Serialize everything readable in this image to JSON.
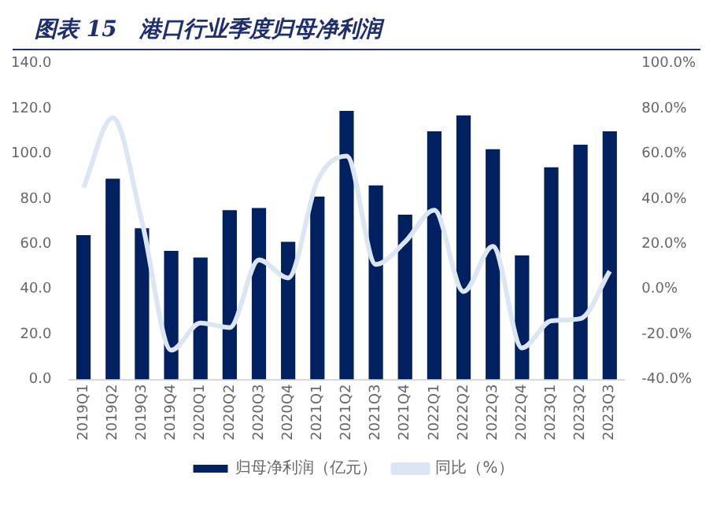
{
  "chart_data": {
    "type": "bar",
    "title": "图表 15　港口行业季度归母净利润",
    "categories": [
      "2019Q1",
      "2019Q2",
      "2019Q3",
      "2019Q4",
      "2020Q1",
      "2020Q2",
      "2020Q3",
      "2020Q4",
      "2021Q1",
      "2021Q2",
      "2021Q3",
      "2021Q4",
      "2022Q1",
      "2022Q2",
      "2022Q3",
      "2022Q4",
      "2023Q1",
      "2023Q2",
      "2023Q3"
    ],
    "series": [
      {
        "name": "归母净利润（亿元）",
        "color": "#002060",
        "values": [
          64,
          89,
          67,
          57,
          54,
          75,
          76,
          61,
          81,
          119,
          86,
          73,
          110,
          117,
          102,
          55,
          94,
          104,
          110
        ]
      },
      {
        "name": "同比（%）",
        "type": "line",
        "axis": "y2",
        "color": "#dce6f2",
        "values": [
          45,
          76,
          30,
          -27,
          -15,
          -17,
          13,
          5,
          48,
          59,
          11,
          21,
          35,
          -1,
          19,
          -26,
          -14,
          -13,
          8
        ]
      }
    ],
    "ylim": [
      0,
      140
    ],
    "yticks": [
      {
        "value": 0,
        "label": "0.0"
      },
      {
        "value": 20,
        "label": "20.0"
      },
      {
        "value": 40,
        "label": "40.0"
      },
      {
        "value": 60,
        "label": "60.0"
      },
      {
        "value": 80,
        "label": "80.0"
      },
      {
        "value": 100,
        "label": "100.0"
      },
      {
        "value": 120,
        "label": "120.0"
      },
      {
        "value": 140,
        "label": "140.0"
      }
    ],
    "y2lim": [
      -40,
      100
    ],
    "y2ticks": [
      {
        "value": -40,
        "label": "-40.0%"
      },
      {
        "value": -20,
        "label": "-20.0%"
      },
      {
        "value": 0,
        "label": "0.0%"
      },
      {
        "value": 20,
        "label": "20.0%"
      },
      {
        "value": 40,
        "label": "40.0%"
      },
      {
        "value": 60,
        "label": "60.0%"
      },
      {
        "value": 80,
        "label": "80.0%"
      },
      {
        "value": 100,
        "label": "100.0%"
      }
    ],
    "grid": false,
    "legend": "bottom",
    "marker": "none"
  }
}
